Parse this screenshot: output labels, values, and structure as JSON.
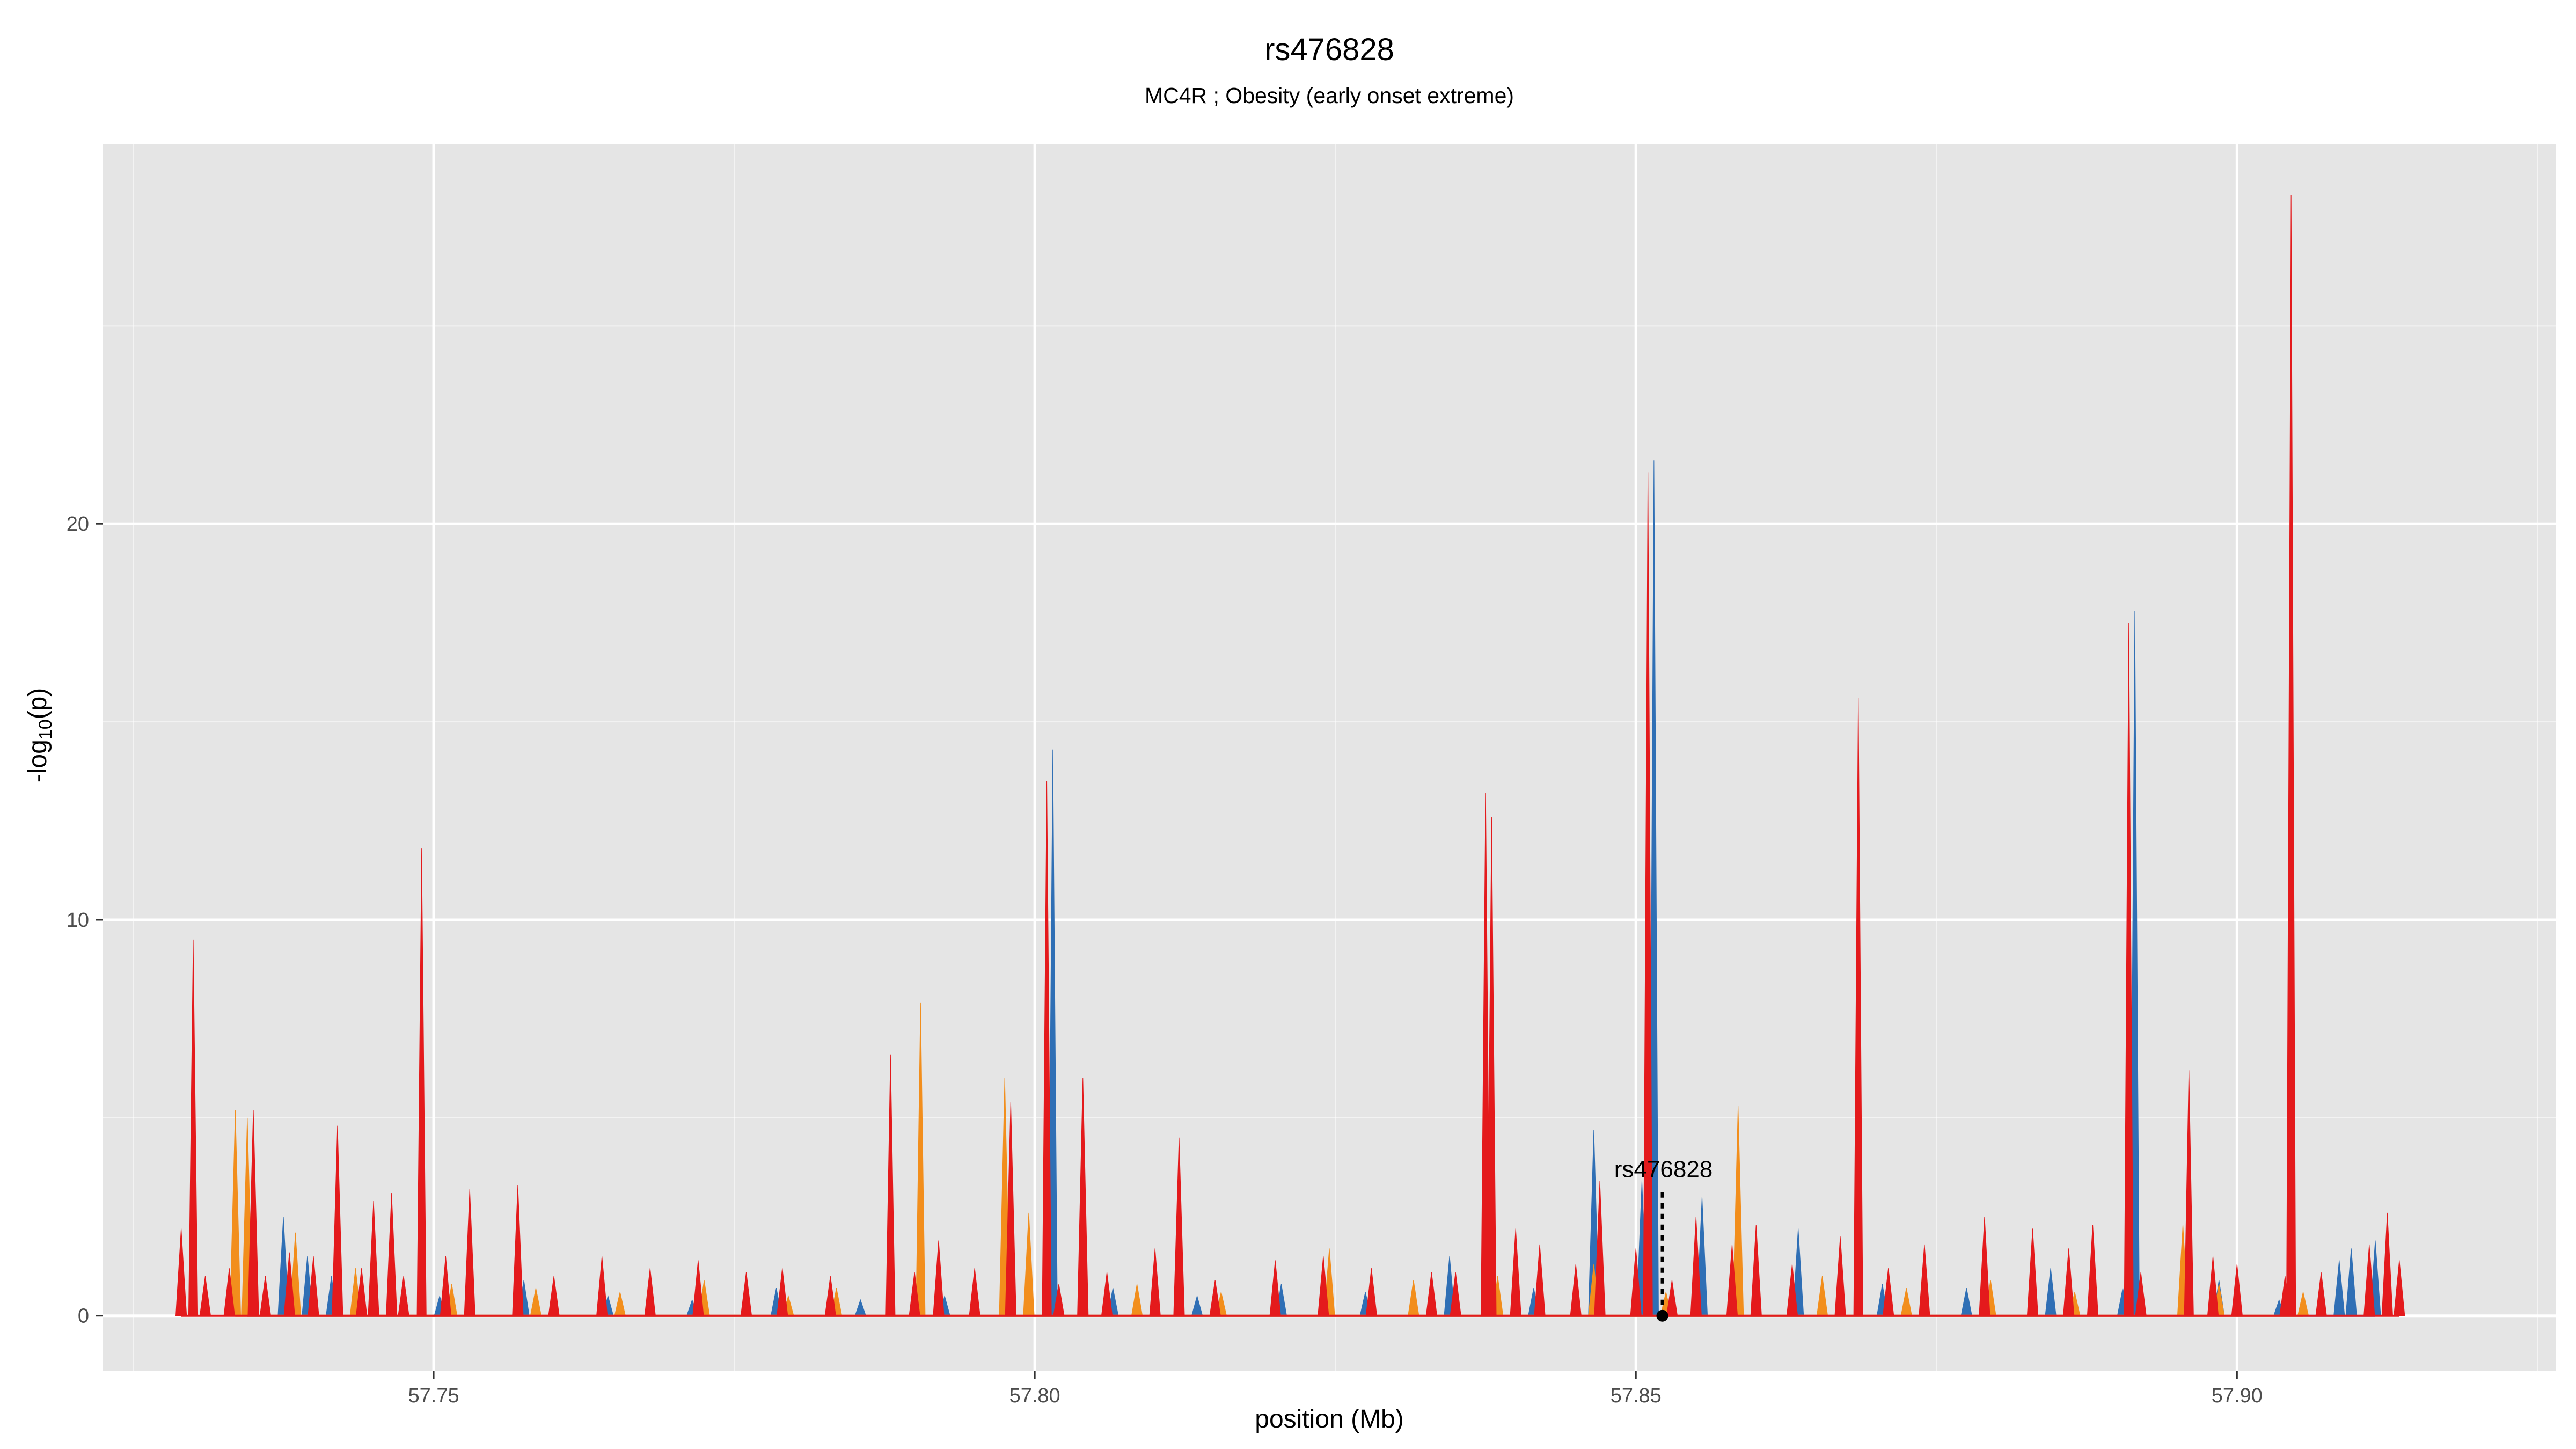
{
  "chart_data": {
    "type": "area",
    "title": "rs476828",
    "subtitle": "MC4R ; Obesity (early onset extreme)",
    "xlabel": "position (Mb)",
    "ylabel_main": "-log",
    "ylabel_sub": "10",
    "ylabel_tail": "(p)",
    "xlim": [
      57.7225,
      57.9265
    ],
    "ylim": [
      -1.4,
      29.6
    ],
    "x_ticks": [
      57.75,
      57.8,
      57.85,
      57.9
    ],
    "x_tick_labels": [
      "57.75",
      "57.80",
      "57.85",
      "57.90"
    ],
    "y_ticks": [
      0,
      10,
      20
    ],
    "y_tick_labels": [
      "0",
      "10",
      "20"
    ],
    "grid": true,
    "panel_color": "#e5e5e5",
    "grid_color": "#ffffff",
    "highlight": {
      "label": "rs476828",
      "x": 57.8522,
      "y": 0,
      "label_y": 3.5
    },
    "series": [
      {
        "color": "#2f6fb5",
        "x": [
          57.7345,
          57.7375,
          57.7395,
          57.7415,
          57.7435,
          57.7505,
          57.7575,
          57.7645,
          57.7715,
          57.7785,
          57.7855,
          57.7925,
          57.7995,
          57.8015,
          57.8065,
          57.8135,
          57.8205,
          57.8275,
          57.8345,
          57.8415,
          57.8465,
          57.8505,
          57.8515,
          57.8555,
          57.8635,
          57.8705,
          57.8775,
          57.8845,
          57.8905,
          57.8915,
          57.8985,
          57.9035,
          57.9085,
          57.9095,
          57.9115
        ],
        "y": [
          0.8,
          2.5,
          1.5,
          1.0,
          0.6,
          0.5,
          0.9,
          0.5,
          0.4,
          0.7,
          0.4,
          0.5,
          0.6,
          14.3,
          0.7,
          0.5,
          0.8,
          0.6,
          1.5,
          0.7,
          4.7,
          3.4,
          21.6,
          3.0,
          2.2,
          0.8,
          0.7,
          1.2,
          0.7,
          17.8,
          0.9,
          0.4,
          1.4,
          1.7,
          1.9
        ]
      },
      {
        "color": "#f28e1c",
        "x": [
          57.7335,
          57.7345,
          57.7385,
          57.7435,
          57.7515,
          57.7585,
          57.7655,
          57.7725,
          57.7795,
          57.7835,
          57.7905,
          57.7975,
          57.7995,
          57.8085,
          57.8155,
          57.8245,
          57.8315,
          57.8385,
          57.8465,
          57.8525,
          57.8585,
          57.8655,
          57.8725,
          57.8795,
          57.8865,
          57.8955,
          57.8985,
          57.9055
        ],
        "y": [
          5.2,
          5.0,
          2.1,
          1.2,
          0.8,
          0.7,
          0.6,
          0.9,
          0.5,
          0.7,
          7.9,
          6.0,
          2.6,
          0.8,
          0.6,
          1.7,
          0.9,
          1.0,
          1.3,
          0.6,
          5.3,
          1.0,
          0.7,
          0.9,
          0.6,
          2.3,
          0.8,
          0.6
        ]
      },
      {
        "color": "#e41a1c",
        "x": [
          57.729,
          57.73,
          57.731,
          57.733,
          57.735,
          57.736,
          57.738,
          57.74,
          57.742,
          57.744,
          57.745,
          57.7465,
          57.7475,
          57.749,
          57.751,
          57.753,
          57.757,
          57.76,
          57.764,
          57.768,
          57.772,
          57.776,
          57.779,
          57.783,
          57.788,
          57.79,
          57.792,
          57.795,
          57.798,
          57.801,
          57.802,
          57.804,
          57.806,
          57.81,
          57.812,
          57.815,
          57.82,
          57.824,
          57.828,
          57.833,
          57.835,
          57.8375,
          57.838,
          57.84,
          57.842,
          57.845,
          57.847,
          57.85,
          57.851,
          57.853,
          57.855,
          57.858,
          57.86,
          57.863,
          57.867,
          57.8685,
          57.871,
          57.874,
          57.879,
          57.883,
          57.886,
          57.888,
          57.891,
          57.892,
          57.896,
          57.898,
          57.9,
          57.904,
          57.9045,
          57.907,
          57.911,
          57.9125,
          57.9135
        ],
        "y": [
          2.2,
          9.5,
          1.0,
          1.2,
          5.2,
          1.0,
          1.6,
          1.5,
          4.8,
          1.2,
          2.9,
          3.1,
          1.0,
          11.8,
          1.5,
          3.2,
          3.3,
          1.0,
          1.5,
          1.2,
          1.4,
          1.1,
          1.2,
          1.0,
          6.6,
          1.1,
          1.9,
          1.2,
          5.4,
          13.5,
          0.8,
          6.0,
          1.1,
          1.7,
          4.5,
          0.9,
          1.4,
          1.5,
          1.2,
          1.1,
          1.1,
          13.2,
          12.6,
          2.2,
          1.8,
          1.3,
          3.4,
          1.7,
          21.3,
          0.9,
          2.5,
          1.8,
          2.3,
          1.3,
          2.0,
          15.6,
          1.2,
          1.8,
          2.5,
          2.2,
          1.7,
          2.3,
          17.5,
          1.1,
          6.2,
          1.5,
          1.3,
          1.0,
          28.3,
          1.1,
          1.8,
          2.6,
          1.4
        ]
      }
    ]
  }
}
